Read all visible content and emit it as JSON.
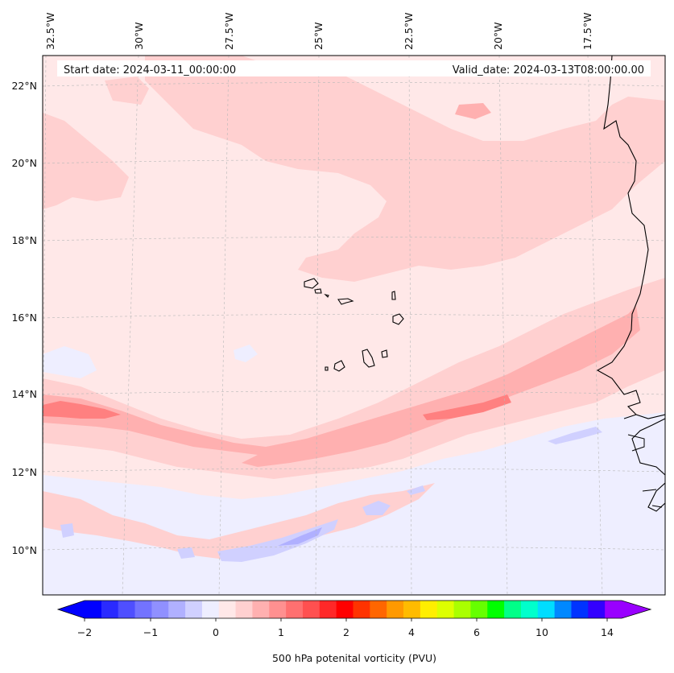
{
  "map": {
    "start_label": "Start date: 2024-03-11_00:00:00",
    "valid_label": "Valid_date: 2024-03-13T08:00:00.00",
    "lon_labels": [
      "32.5°W",
      "30°W",
      "27.5°W",
      "25°W",
      "22.5°W",
      "20°W",
      "17.5°W"
    ],
    "lat_labels": [
      "22°N",
      "20°N",
      "18°N",
      "16°N",
      "14°N",
      "12°N",
      "10°N"
    ]
  },
  "colorbar": {
    "title": "500 hPa potenital vorticity (PVU)",
    "ticks": [
      "−2",
      "−1",
      "0",
      "1",
      "2",
      "4",
      "6",
      "10",
      "14"
    ],
    "colors": [
      "#0000ff",
      "#2a2aff",
      "#4f4fff",
      "#7373ff",
      "#9090ff",
      "#b0b0ff",
      "#d0d0ff",
      "#eeeeff",
      "#ffe8e8",
      "#ffd0d0",
      "#ffb0b0",
      "#ff9090",
      "#ff7070",
      "#ff5050",
      "#ff2828",
      "#ff0000",
      "#ff3300",
      "#ff6600",
      "#ff9900",
      "#ffbb00",
      "#ffee00",
      "#ddff00",
      "#aaff00",
      "#66ff00",
      "#00ff00",
      "#00ff88",
      "#00ffcc",
      "#00ddff",
      "#0088ff",
      "#0033ff",
      "#3300ff",
      "#9900ff"
    ]
  },
  "fill_colors": {
    "background": "#ffe8e8",
    "light_pink": "#ffd0d0",
    "pink": "#ffb0b0",
    "red": "#ff8080",
    "pale_blue": "#eeeeff",
    "light_blue": "#d0d0ff",
    "blue": "#b0b0ff"
  }
}
